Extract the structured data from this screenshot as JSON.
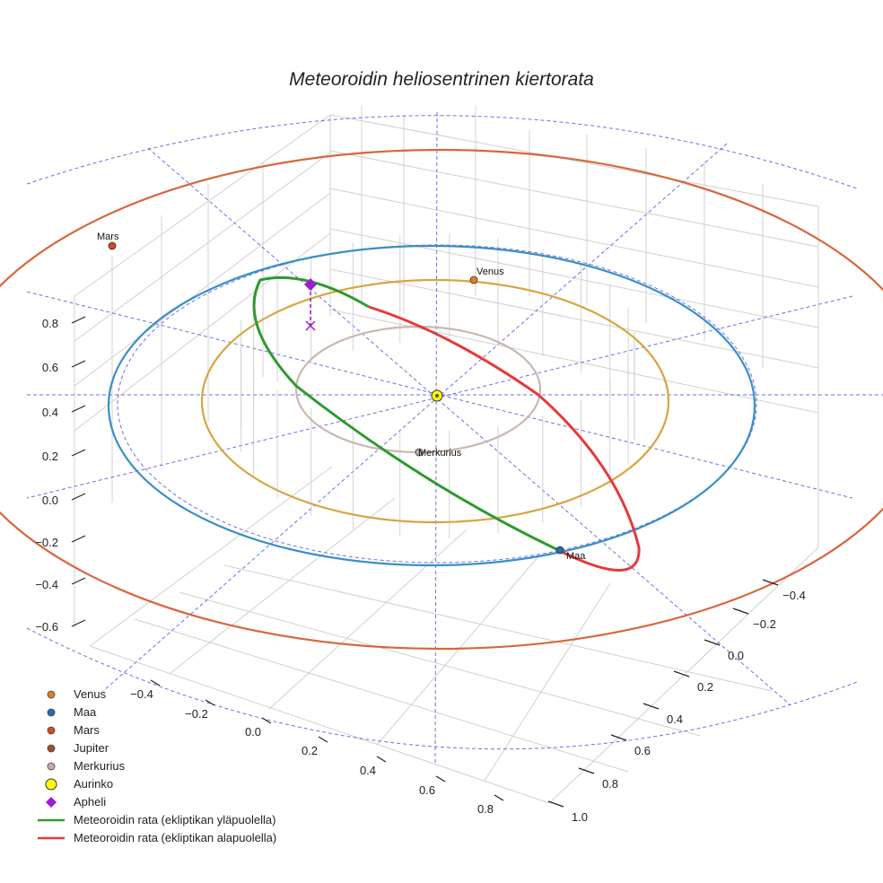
{
  "chart_data": {
    "type": "scatter3d",
    "title": "Meteoroidin heliosentrinen kiertorata",
    "colors": {
      "venus": "#d9a441",
      "earth": "#3a8fc7",
      "mars": "#d9663c",
      "mercury": "#c9b8b0",
      "above": "#2e9a2e",
      "below": "#e63a3a",
      "aphelion": "#9a1fd0",
      "grid": "#d0d0d0",
      "guide": "#4b4be0"
    },
    "axes": {
      "x_ticks": [
        "−0.4",
        "−0.2",
        "0.0",
        "0.2",
        "0.4",
        "0.6",
        "0.8"
      ],
      "y_ticks": [
        "−0.4",
        "−0.2",
        "0.0",
        "0.2",
        "0.4",
        "0.6",
        "0.8",
        "1.0"
      ],
      "z_ticks": [
        "0.8",
        "0.6",
        "0.4",
        "0.2",
        "0.0",
        "−0.2",
        "−0.4",
        "−0.6"
      ]
    },
    "planets": [
      {
        "name": "Venus",
        "label": "Venus",
        "orbit_radius_au": 0.72
      },
      {
        "name": "Maa",
        "label": "Maa",
        "orbit_radius_au": 1.0
      },
      {
        "name": "Mars",
        "label": "Mars",
        "orbit_radius_au": 1.52
      },
      {
        "name": "Merkurius",
        "label": "Merkurius",
        "orbit_radius_au": 0.39
      }
    ],
    "sun": {
      "name": "Aurinko",
      "x": 0,
      "y": 0,
      "z": 0
    },
    "aphelion": {
      "name": "Apheli"
    },
    "meteoroid_orbit": {
      "above_label": "Meteoroidin rata (ekliptikan yläpuolella)",
      "below_label": "Meteoroidin rata (ekliptikan alapuolella)"
    },
    "legend": [
      {
        "label": "Venus",
        "marker": "dot",
        "color": "#d9822b"
      },
      {
        "label": "Maa",
        "marker": "dot",
        "color": "#1f6fb5"
      },
      {
        "label": "Mars",
        "marker": "dot",
        "color": "#d24a24"
      },
      {
        "label": "Jupiter",
        "marker": "dot",
        "color": "#a0522d"
      },
      {
        "label": "Merkurius",
        "marker": "dot",
        "color": "#c4b0a8"
      },
      {
        "label": "Aurinko",
        "marker": "sun",
        "color": "#ffff00"
      },
      {
        "label": "Apheli",
        "marker": "diamond",
        "color": "#9a1fd0"
      },
      {
        "label": "Meteoroidin rata (ekliptikan yläpuolella)",
        "marker": "line",
        "color": "#2e9a2e"
      },
      {
        "label": "Meteoroidin rata (ekliptikan alapuolella)",
        "marker": "line",
        "color": "#e63a3a"
      }
    ]
  }
}
